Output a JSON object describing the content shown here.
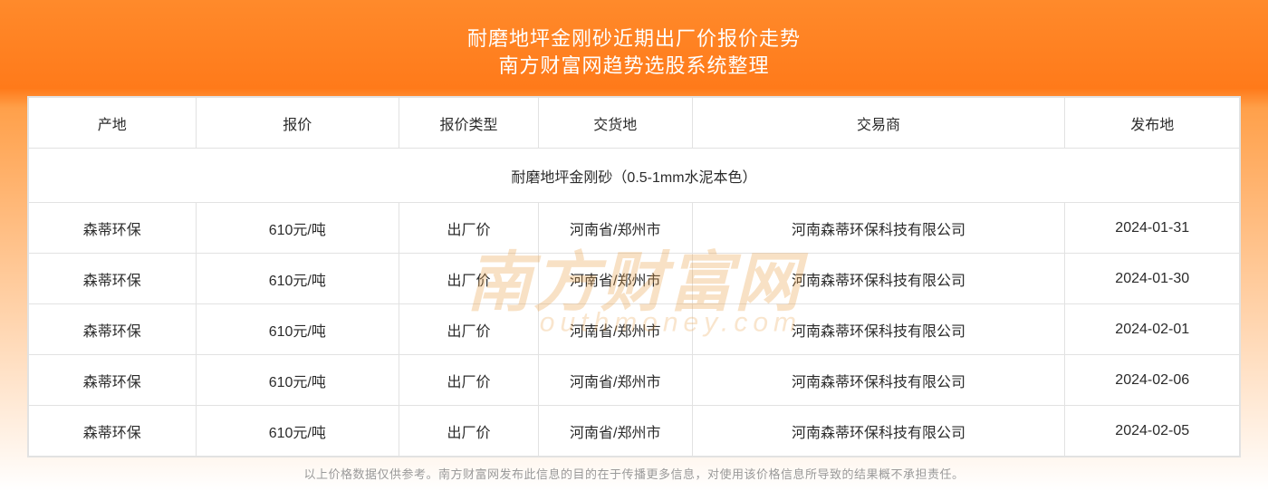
{
  "header": {
    "title_line1": "耐磨地坪金刚砂近期出厂价报价走势",
    "title_line2": "南方财富网趋势选股系统整理"
  },
  "table": {
    "columns": [
      "产地",
      "报价",
      "报价类型",
      "交货地",
      "交易商",
      "发布地"
    ],
    "section_label": "耐磨地坪金刚砂（0.5-1mm水泥本色）",
    "rows": [
      {
        "origin": "森蒂环保",
        "price": "610元/吨",
        "price_type": "出厂价",
        "delivery": "河南省/郑州市",
        "trader": "河南森蒂环保科技有限公司",
        "publish_date": "2024-01-31"
      },
      {
        "origin": "森蒂环保",
        "price": "610元/吨",
        "price_type": "出厂价",
        "delivery": "河南省/郑州市",
        "trader": "河南森蒂环保科技有限公司",
        "publish_date": "2024-01-30"
      },
      {
        "origin": "森蒂环保",
        "price": "610元/吨",
        "price_type": "出厂价",
        "delivery": "河南省/郑州市",
        "trader": "河南森蒂环保科技有限公司",
        "publish_date": "2024-02-01"
      },
      {
        "origin": "森蒂环保",
        "price": "610元/吨",
        "price_type": "出厂价",
        "delivery": "河南省/郑州市",
        "trader": "河南森蒂环保科技有限公司",
        "publish_date": "2024-02-06"
      },
      {
        "origin": "森蒂环保",
        "price": "610元/吨",
        "price_type": "出厂价",
        "delivery": "河南省/郑州市",
        "trader": "河南森蒂环保科技有限公司",
        "publish_date": "2024-02-05"
      }
    ]
  },
  "footer": {
    "note": "以上价格数据仅供参考。南方财富网发布此信息的目的在于传播更多信息，对使用该价格信息所导致的结果概不承担责任。"
  },
  "watermark": {
    "main": "南方财富网",
    "sub": "outhmoney.com"
  },
  "colors": {
    "gradient_top": "#ff8a2b",
    "gradient_mid": "#ff7a1a",
    "text_white": "#ffffff",
    "border": "#e2e2e2",
    "cell_text": "#2b2b2b",
    "footer_text": "#9a9a9a",
    "watermark": "rgba(232,162,74,0.32)"
  }
}
